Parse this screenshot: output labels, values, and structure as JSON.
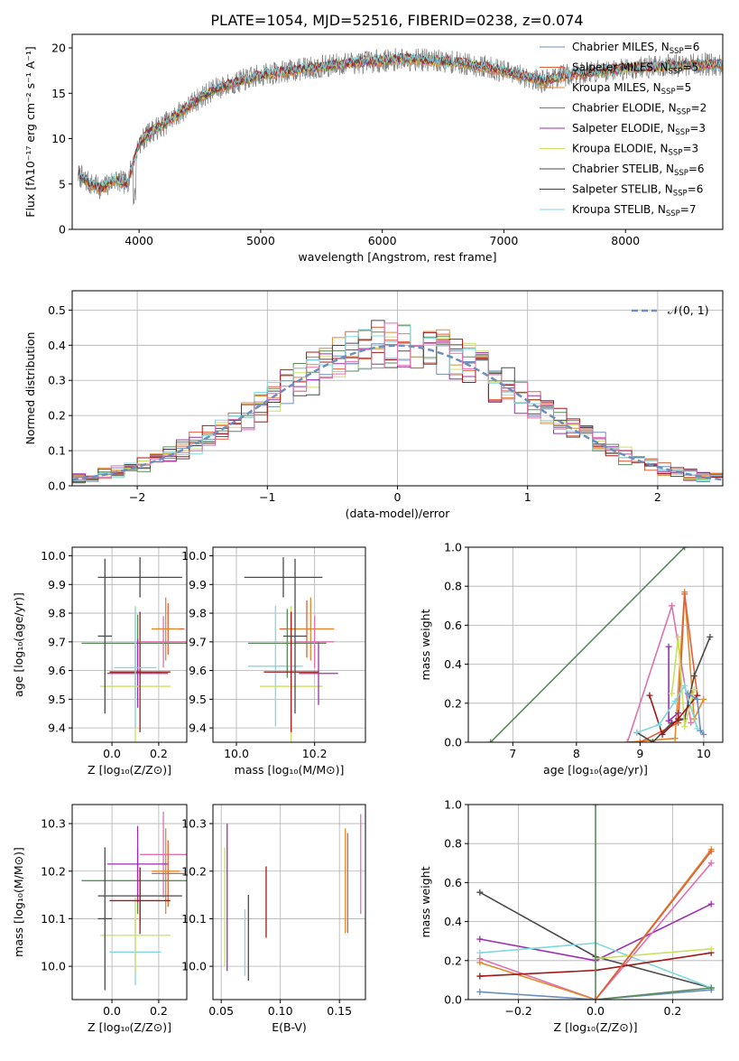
{
  "page_title": "PLATE=1054, MJD=52516, FIBERID=0238, z=0.074",
  "colors": [
    "#6c8ebf",
    "#e0603a",
    "#e08a2c",
    "#5a8a5a",
    "#9b2fae",
    "#c9e060",
    "#4a4a4a",
    "#a01818",
    "#80d8e0",
    "#e070b0"
  ],
  "chart_data": [
    {
      "type": "line",
      "title": "PLATE=1054, MJD=52516, FIBERID=0238, z=0.074",
      "xlabel": "wavelength [Angstrom, rest frame]",
      "ylabel": "Flux [fλ10⁻¹⁷ erg cm⁻² s⁻¹ A⁻¹]",
      "xlim": [
        3450,
        8800
      ],
      "ylim": [
        0,
        21.5
      ],
      "xticks": [
        4000,
        5000,
        6000,
        7000,
        8000
      ],
      "yticks": [
        0,
        5,
        10,
        15,
        20
      ],
      "grid": false,
      "legend_position": "right",
      "series": [
        {
          "name": "Chabrier MILES, N",
          "sub": "SSP",
          "count": "=6"
        },
        {
          "name": "Salpeter MILES, N",
          "sub": "SSP",
          "count": "=5"
        },
        {
          "name": "Kroupa MILES, N",
          "sub": "SSP",
          "count": "=5"
        },
        {
          "name": "Chabrier ELODIE, N",
          "sub": "SSP",
          "count": "=2"
        },
        {
          "name": "Salpeter ELODIE, N",
          "sub": "SSP",
          "count": "=3"
        },
        {
          "name": "Kroupa ELODIE, N",
          "sub": "SSP",
          "count": "=3"
        },
        {
          "name": "Chabrier STELIB, N",
          "sub": "SSP",
          "count": "=6"
        },
        {
          "name": "Salpeter STELIB, N",
          "sub": "SSP",
          "count": "=6"
        },
        {
          "name": "Kroupa STELIB, N",
          "sub": "SSP",
          "count": "=7"
        }
      ],
      "spectrum_knots": {
        "x": [
          3500,
          3600,
          3700,
          3800,
          3900,
          4000,
          4100,
          4200,
          4300,
          4400,
          4500,
          4600,
          4700,
          4800,
          4900,
          5000,
          5100,
          5200,
          5300,
          5400,
          5500,
          5600,
          5700,
          5800,
          5900,
          6000,
          6100,
          6200,
          6300,
          6400,
          6500,
          6600,
          6700,
          6800,
          6900,
          7000,
          7100,
          7200,
          7300,
          7400,
          7500,
          7700,
          7900,
          8100,
          8300,
          8500,
          8700,
          8800
        ],
        "y": [
          6.0,
          5.0,
          4.5,
          5.5,
          5.0,
          9.5,
          10.8,
          11.5,
          12.5,
          13.5,
          14.5,
          15.3,
          15.8,
          16.2,
          16.6,
          17.0,
          17.2,
          17.4,
          17.6,
          17.8,
          17.9,
          18.1,
          18.3,
          18.4,
          18.5,
          18.6,
          18.7,
          18.8,
          18.7,
          18.6,
          18.5,
          18.4,
          18.2,
          18.0,
          17.8,
          17.4,
          17.0,
          16.8,
          16.3,
          16.6,
          17.0,
          17.3,
          17.6,
          17.8,
          18.0,
          18.1,
          18.2,
          18.2
        ]
      }
    },
    {
      "type": "line",
      "xlabel": "(data-model)/error",
      "ylabel": "Normed distribution",
      "xlim": [
        -2.5,
        2.5
      ],
      "ylim": [
        0,
        0.555
      ],
      "xticks": [
        -2,
        -1,
        0,
        1,
        2
      ],
      "yticks": [
        0.0,
        0.1,
        0.2,
        0.3,
        0.4,
        0.5
      ],
      "grid": true,
      "legend_position": "top-right",
      "legend_label": "𝒩(0, 1)",
      "bin_width": 0.1,
      "reference": {
        "name": "𝒩(0, 1)",
        "mean": 0,
        "sigma": 1
      }
    },
    {
      "type": "scatter",
      "xlabel": "Z [log₁₀(Z/Z⊙)]",
      "ylabel": "age  [log₁₀(age/yr)]",
      "xlim": [
        -0.17,
        0.32
      ],
      "ylim": [
        9.35,
        10.03
      ],
      "xticks": [
        0.0,
        0.2
      ],
      "yticks": [
        9.4,
        9.5,
        9.6,
        9.7,
        9.8,
        9.9,
        10.0
      ],
      "grid": true,
      "points": [
        {
          "x": 0.1,
          "y": 9.595,
          "xerr": 0.11,
          "yerr": 0.09,
          "c": 0
        },
        {
          "x": 0.24,
          "y": 9.745,
          "xerr": 0.07,
          "yerr": 0.09,
          "c": 1
        },
        {
          "x": 0.23,
          "y": 9.745,
          "xerr": 0.06,
          "yerr": 0.11,
          "c": 2
        },
        {
          "x": 0.11,
          "y": 9.695,
          "xerr": 0.24,
          "yerr": 0.1,
          "c": 3
        },
        {
          "x": 0.11,
          "y": 9.59,
          "xerr": 0.13,
          "yerr": 0.12,
          "c": 4
        },
        {
          "x": 0.1,
          "y": 9.545,
          "xerr": 0.15,
          "yerr": 0.28,
          "c": 5
        },
        {
          "x": 0.12,
          "y": 9.925,
          "xerr": 0.18,
          "yerr": 0.07,
          "c": 6
        },
        {
          "x": 0.12,
          "y": 9.595,
          "xerr": 0.13,
          "yerr": 0.21,
          "c": 7
        },
        {
          "x": 0.1,
          "y": 9.61,
          "xerr": 0.09,
          "yerr": 0.21,
          "c": 8
        },
        {
          "x": 0.22,
          "y": 9.7,
          "xerr": 0.1,
          "yerr": 0.09,
          "c": 9
        },
        {
          "x": -0.03,
          "y": 9.72,
          "xerr": 0.03,
          "yerr": 0.27,
          "c": 6
        }
      ]
    },
    {
      "type": "scatter",
      "xlabel": "mass [log₁₀(M/M⊙)]",
      "xlim": [
        9.94,
        10.33
      ],
      "ylim": [
        9.35,
        10.03
      ],
      "xticks": [
        10.0,
        10.2
      ],
      "yticks": [
        9.4,
        9.5,
        9.6,
        9.7,
        9.8,
        9.9,
        10.0
      ],
      "grid": true,
      "points": [
        {
          "x": 10.1,
          "y": 9.615,
          "xerr": 0.07,
          "yerr": 0.21,
          "c": 8
        },
        {
          "x": 10.14,
          "y": 9.545,
          "xerr": 0.08,
          "yerr": 0.28,
          "c": 5
        },
        {
          "x": 10.18,
          "y": 9.745,
          "xerr": 0.07,
          "yerr": 0.1,
          "c": 1
        },
        {
          "x": 10.19,
          "y": 9.745,
          "xerr": 0.06,
          "yerr": 0.11,
          "c": 2
        },
        {
          "x": 10.13,
          "y": 9.695,
          "xerr": 0.1,
          "yerr": 0.12,
          "c": 3
        },
        {
          "x": 10.21,
          "y": 9.59,
          "xerr": 0.05,
          "yerr": 0.11,
          "c": 4
        },
        {
          "x": 10.12,
          "y": 9.925,
          "xerr": 0.1,
          "yerr": 0.07,
          "c": 6
        },
        {
          "x": 10.14,
          "y": 9.595,
          "xerr": 0.07,
          "yerr": 0.21,
          "c": 7
        },
        {
          "x": 10.2,
          "y": 9.7,
          "xerr": 0.05,
          "yerr": 0.09,
          "c": 9
        },
        {
          "x": 10.15,
          "y": 9.72,
          "xerr": 0.03,
          "yerr": 0.27,
          "c": 6
        }
      ]
    },
    {
      "type": "line",
      "xlabel": "age  [log₁₀(age/yr)]",
      "ylabel": "mass weight",
      "xlim": [
        6.3,
        10.3
      ],
      "ylim": [
        0,
        1.0
      ],
      "xticks": [
        7,
        8,
        9,
        10
      ],
      "yticks": [
        0.0,
        0.2,
        0.4,
        0.6,
        0.8,
        1.0
      ],
      "grid": true,
      "series": [
        {
          "c": 3,
          "x": [
            6.65,
            9.7
          ],
          "y": [
            0.0,
            1.0
          ]
        },
        {
          "c": 9,
          "x": [
            8.8,
            9.5,
            9.8
          ],
          "y": [
            0.0,
            0.7,
            0.1
          ]
        },
        {
          "c": 2,
          "x": [
            8.8,
            9.55,
            9.7,
            9.85,
            10.0
          ],
          "y": [
            0.0,
            0.02,
            0.77,
            0.12,
            0.22
          ]
        },
        {
          "c": 1,
          "x": [
            9.0,
            9.6,
            9.7,
            9.9
          ],
          "y": [
            0.0,
            0.1,
            0.76,
            0.24
          ]
        },
        {
          "c": 6,
          "x": [
            8.95,
            9.2,
            9.5,
            9.7,
            9.85,
            10.1
          ],
          "y": [
            0.05,
            0.0,
            0.1,
            0.12,
            0.34,
            0.54
          ]
        },
        {
          "c": 4,
          "x": [
            9.45,
            9.45,
            9.6
          ],
          "y": [
            0.49,
            0.11,
            0.15
          ]
        },
        {
          "c": 5,
          "x": [
            9.5,
            9.6,
            9.7,
            9.85
          ],
          "y": [
            0.25,
            0.54,
            0.08,
            0.27
          ]
        },
        {
          "c": 7,
          "x": [
            9.15,
            9.35,
            9.6,
            9.9
          ],
          "y": [
            0.24,
            0.04,
            0.12,
            0.24
          ]
        },
        {
          "c": 8,
          "x": [
            8.95,
            9.3,
            9.55,
            9.7,
            9.9
          ],
          "y": [
            0.05,
            0.09,
            0.21,
            0.29,
            0.07
          ]
        },
        {
          "c": 0,
          "x": [
            9.75,
            9.9,
            9.95,
            10.0
          ],
          "y": [
            0.25,
            0.22,
            0.06,
            0.04
          ]
        }
      ]
    },
    {
      "type": "scatter",
      "xlabel": "Z [log₁₀(Z/Z⊙)]",
      "ylabel": "mass [log₁₀(M/M⊙)]",
      "xlim": [
        -0.17,
        0.32
      ],
      "ylim": [
        9.93,
        10.34
      ],
      "xticks": [
        0.0,
        0.2
      ],
      "yticks": [
        10.0,
        10.1,
        10.2,
        10.3
      ],
      "grid": true,
      "points": [
        {
          "x": 0.1,
          "y": 10.03,
          "xerr": 0.11,
          "yerr": 0.07,
          "c": 8
        },
        {
          "x": 0.1,
          "y": 10.065,
          "xerr": 0.15,
          "yerr": 0.08,
          "c": 5
        },
        {
          "x": 0.22,
          "y": 10.235,
          "xerr": 0.1,
          "yerr": 0.09,
          "c": 9
        },
        {
          "x": 0.24,
          "y": 10.195,
          "xerr": 0.07,
          "yerr": 0.07,
          "c": 1
        },
        {
          "x": 0.23,
          "y": 10.2,
          "xerr": 0.06,
          "yerr": 0.09,
          "c": 2
        },
        {
          "x": 0.11,
          "y": 10.18,
          "xerr": 0.24,
          "yerr": 0.07,
          "c": 3
        },
        {
          "x": 0.11,
          "y": 10.215,
          "xerr": 0.13,
          "yerr": 0.08,
          "c": 4
        },
        {
          "x": 0.12,
          "y": 10.148,
          "xerr": 0.18,
          "yerr": 0.06,
          "c": 6
        },
        {
          "x": 0.12,
          "y": 10.138,
          "xerr": 0.13,
          "yerr": 0.07,
          "c": 7
        },
        {
          "x": -0.03,
          "y": 10.1,
          "xerr": 0.03,
          "yerr": 0.15,
          "c": 6
        }
      ]
    },
    {
      "type": "scatter",
      "xlabel": "E(B-V)",
      "xlim": [
        0.043,
        0.172
      ],
      "ylim": [
        9.93,
        10.34
      ],
      "xticks": [
        0.05,
        0.1,
        0.15
      ],
      "yticks": [
        10.0,
        10.1,
        10.2,
        10.3
      ],
      "grid": true,
      "segments": [
        {
          "x": 0.053,
          "y0": 10.0,
          "y1": 10.25,
          "c": 5
        },
        {
          "x": 0.055,
          "y0": 9.99,
          "y1": 10.3,
          "c": 4
        },
        {
          "x": 0.07,
          "y0": 9.98,
          "y1": 10.12,
          "c": 8
        },
        {
          "x": 0.073,
          "y0": 9.97,
          "y1": 10.15,
          "c": 6
        },
        {
          "x": 0.088,
          "y0": 10.06,
          "y1": 10.21,
          "c": 7
        },
        {
          "x": 0.155,
          "y0": 10.07,
          "y1": 10.29,
          "c": 2
        },
        {
          "x": 0.157,
          "y0": 10.07,
          "y1": 10.28,
          "c": 1
        },
        {
          "x": 0.168,
          "y0": 10.11,
          "y1": 10.32,
          "c": 9
        }
      ]
    },
    {
      "type": "line",
      "xlabel": "Z [log₁₀(Z/Z⊙)]",
      "ylabel": "mass weight",
      "xlim": [
        -0.33,
        0.33
      ],
      "ylim": [
        0,
        1.0
      ],
      "xticks": [
        -0.2,
        0.0,
        0.2
      ],
      "yticks": [
        0.0,
        0.2,
        0.4,
        0.6,
        0.8,
        1.0
      ],
      "grid": true,
      "series": [
        {
          "c": 6,
          "x": [
            -0.3,
            0.0,
            0.3
          ],
          "y": [
            0.55,
            0.22,
            0.06
          ]
        },
        {
          "c": 4,
          "x": [
            -0.3,
            0.0,
            0.3
          ],
          "y": [
            0.31,
            0.2,
            0.49
          ]
        },
        {
          "c": 8,
          "x": [
            -0.3,
            0.0,
            0.3
          ],
          "y": [
            0.24,
            0.29,
            0.06
          ]
        },
        {
          "c": 9,
          "x": [
            -0.3,
            0.0,
            0.3
          ],
          "y": [
            0.21,
            0.0,
            0.7
          ]
        },
        {
          "c": 2,
          "x": [
            -0.3,
            0.0,
            0.3
          ],
          "y": [
            0.19,
            0.0,
            0.77
          ]
        },
        {
          "c": 7,
          "x": [
            -0.3,
            0.0,
            0.3
          ],
          "y": [
            0.12,
            0.15,
            0.24
          ]
        },
        {
          "c": 0,
          "x": [
            -0.3,
            0.0,
            0.3
          ],
          "y": [
            0.04,
            0.0,
            0.05
          ]
        },
        {
          "c": 5,
          "x": [
            0.0,
            0.3
          ],
          "y": [
            0.21,
            0.26
          ]
        },
        {
          "c": 3,
          "x": [
            0.0,
            0.0,
            0.3
          ],
          "y": [
            1.0,
            0.0,
            0.06
          ]
        },
        {
          "c": 1,
          "x": [
            0.0,
            0.3
          ],
          "y": [
            0.0,
            0.76
          ]
        }
      ]
    }
  ]
}
